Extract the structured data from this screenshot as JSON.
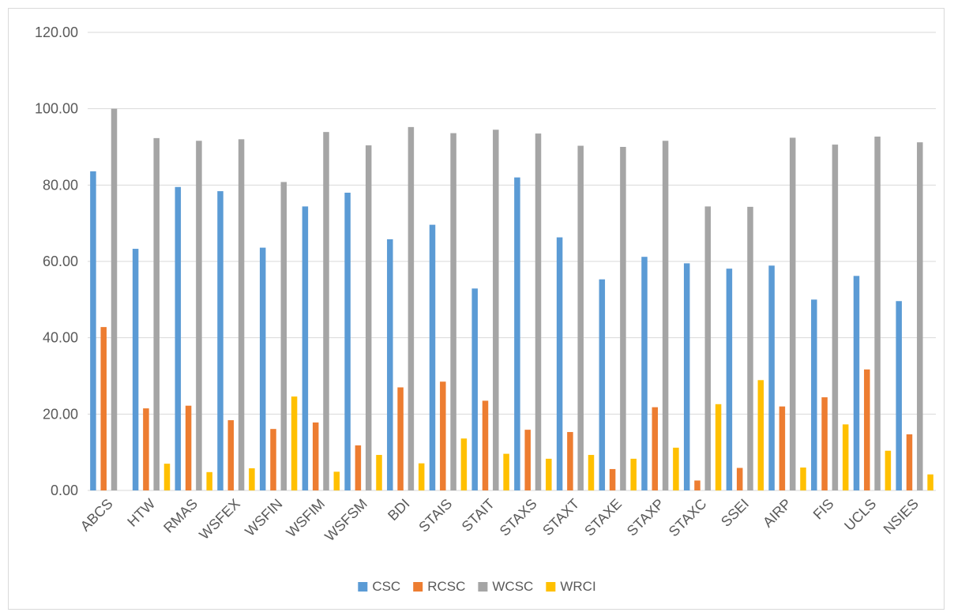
{
  "chart_data": {
    "type": "bar",
    "title": "",
    "xlabel": "",
    "ylabel": "",
    "ylim": [
      0,
      120
    ],
    "y_ticks": [
      "0.00",
      "20.00",
      "40.00",
      "60.00",
      "80.00",
      "100.00",
      "120.00"
    ],
    "grid": true,
    "legend_position": "bottom",
    "categories": [
      "ABCS",
      "HTW",
      "RMAS",
      "WSFEX",
      "WSFIN",
      "WSFIM",
      "WSFSM",
      "BDI",
      "STAIS",
      "STAIT",
      "STAXS",
      "STAXT",
      "STAXE",
      "STAXP",
      "STAXC",
      "SSEI",
      "AIRP",
      "FIS",
      "UCLS",
      "NSIES"
    ],
    "series": [
      {
        "name": "CSC",
        "color": "#5b9bd5",
        "values": [
          83.6,
          63.3,
          79.5,
          78.4,
          63.6,
          74.4,
          78.0,
          65.8,
          69.6,
          52.9,
          82.0,
          66.3,
          55.3,
          61.2,
          59.5,
          58.1,
          58.9,
          50.0,
          56.2,
          49.6
        ]
      },
      {
        "name": "RCSC",
        "color": "#ed7d31",
        "values": [
          42.8,
          21.5,
          22.2,
          18.4,
          16.1,
          17.8,
          11.8,
          27.0,
          28.5,
          23.5,
          15.9,
          15.3,
          5.6,
          21.8,
          2.6,
          5.9,
          22.0,
          24.4,
          31.7,
          14.7
        ]
      },
      {
        "name": "WCSC",
        "color": "#a5a5a5",
        "values": [
          100.0,
          92.3,
          91.6,
          92.0,
          80.8,
          93.9,
          90.4,
          95.2,
          93.6,
          94.5,
          93.5,
          90.3,
          90.0,
          91.6,
          74.4,
          74.3,
          92.4,
          90.6,
          92.7,
          91.2
        ]
      },
      {
        "name": "WRCI",
        "color": "#ffc000",
        "values": [
          0.0,
          7.0,
          4.8,
          5.8,
          24.6,
          4.9,
          9.3,
          7.1,
          13.6,
          9.6,
          8.3,
          9.3,
          8.3,
          11.2,
          22.6,
          28.9,
          6.0,
          17.3,
          10.4,
          4.2
        ]
      }
    ]
  }
}
